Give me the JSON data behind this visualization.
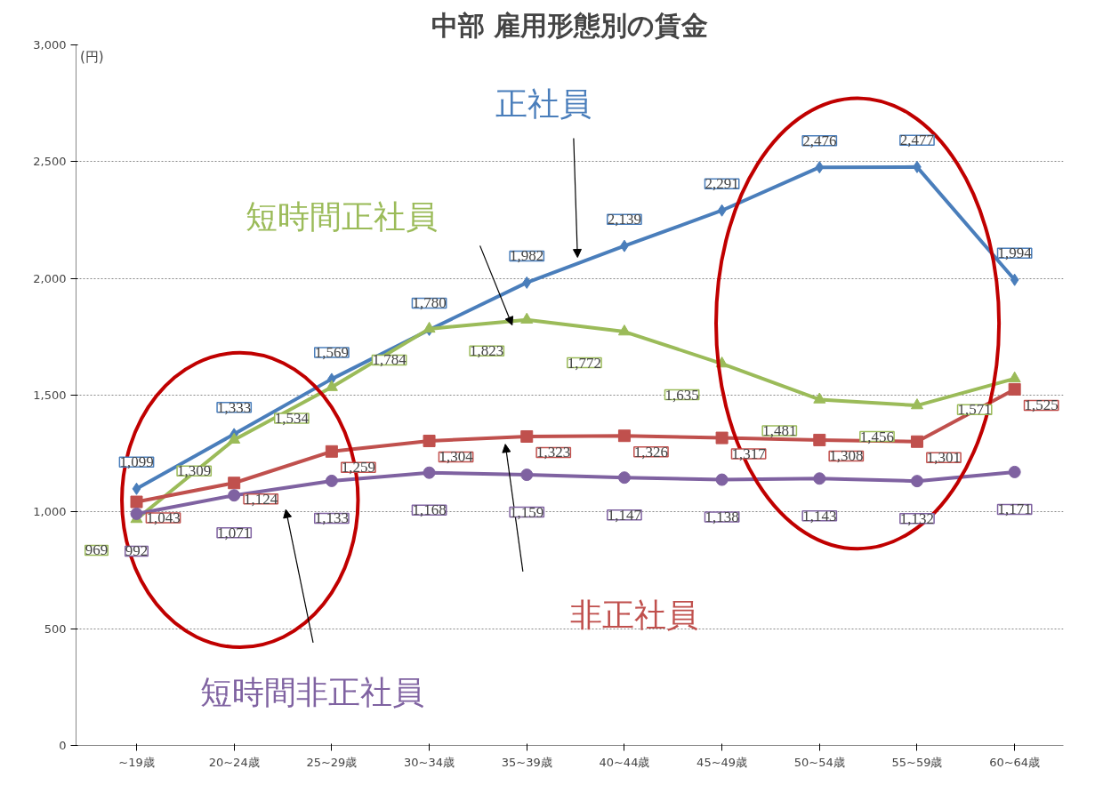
{
  "chart_data": {
    "type": "line",
    "title": "中部 雇用形態別の賃金",
    "ylabel": "(円)",
    "categories": [
      "~19歳",
      "20~24歳",
      "25~29歳",
      "30~34歳",
      "35~39歳",
      "40~44歳",
      "45~49歳",
      "50~54歳",
      "55~59歳",
      "60~64歳"
    ],
    "series": [
      {
        "name": "正社員",
        "color": "#4a7ebb",
        "marker": "diamond",
        "values": [
          1099,
          1333,
          1569,
          1780,
          1982,
          2139,
          2291,
          2476,
          2477,
          1994
        ],
        "value_labels": [
          "1,099",
          "1,333",
          "1,569",
          "1,780",
          "1,982",
          "2,139",
          "2,291",
          "2,476",
          "2,477",
          "1,994"
        ]
      },
      {
        "name": "短時間正社員",
        "color": "#9bbb59",
        "marker": "triangle",
        "values": [
          969,
          1309,
          1534,
          1784,
          1823,
          1772,
          1635,
          1481,
          1456,
          1571
        ],
        "value_labels": [
          "969",
          "1,309",
          "1,534",
          "1,784",
          "1,823",
          "1,772",
          "1,635",
          "1,481",
          "1,456",
          "1,571"
        ]
      },
      {
        "name": "非正社員",
        "color": "#c0504d",
        "marker": "square",
        "values": [
          1043,
          1124,
          1259,
          1304,
          1323,
          1326,
          1317,
          1308,
          1301,
          1525
        ],
        "value_labels": [
          "1,043",
          "1,124",
          "1,259",
          "1,304",
          "1,323",
          "1,326",
          "1,317",
          "1,308",
          "1,301",
          "1,525"
        ]
      },
      {
        "name": "短時間非正社員",
        "color": "#7f62a1",
        "marker": "circle",
        "values": [
          992,
          1071,
          1133,
          1168,
          1159,
          1147,
          1138,
          1143,
          1132,
          1171
        ],
        "value_labels": [
          "992",
          "1,071",
          "1,133",
          "1,168",
          "1,159",
          "1,147",
          "1,138",
          "1,143",
          "1,132",
          "1,171"
        ]
      }
    ],
    "ylim": [
      0,
      3000
    ],
    "yticks": [
      0,
      {
        "value": 500,
        "label": "500"
      },
      {
        "value": 1000,
        "label": "1,000"
      },
      {
        "value": 1500,
        "label": "1,500"
      },
      {
        "value": 2000,
        "label": "2,000"
      },
      {
        "value": 2500,
        "label": "2,500"
      },
      {
        "value": 3000,
        "label": "3,000"
      }
    ],
    "grid": "y",
    "line_style": "solid"
  }
}
